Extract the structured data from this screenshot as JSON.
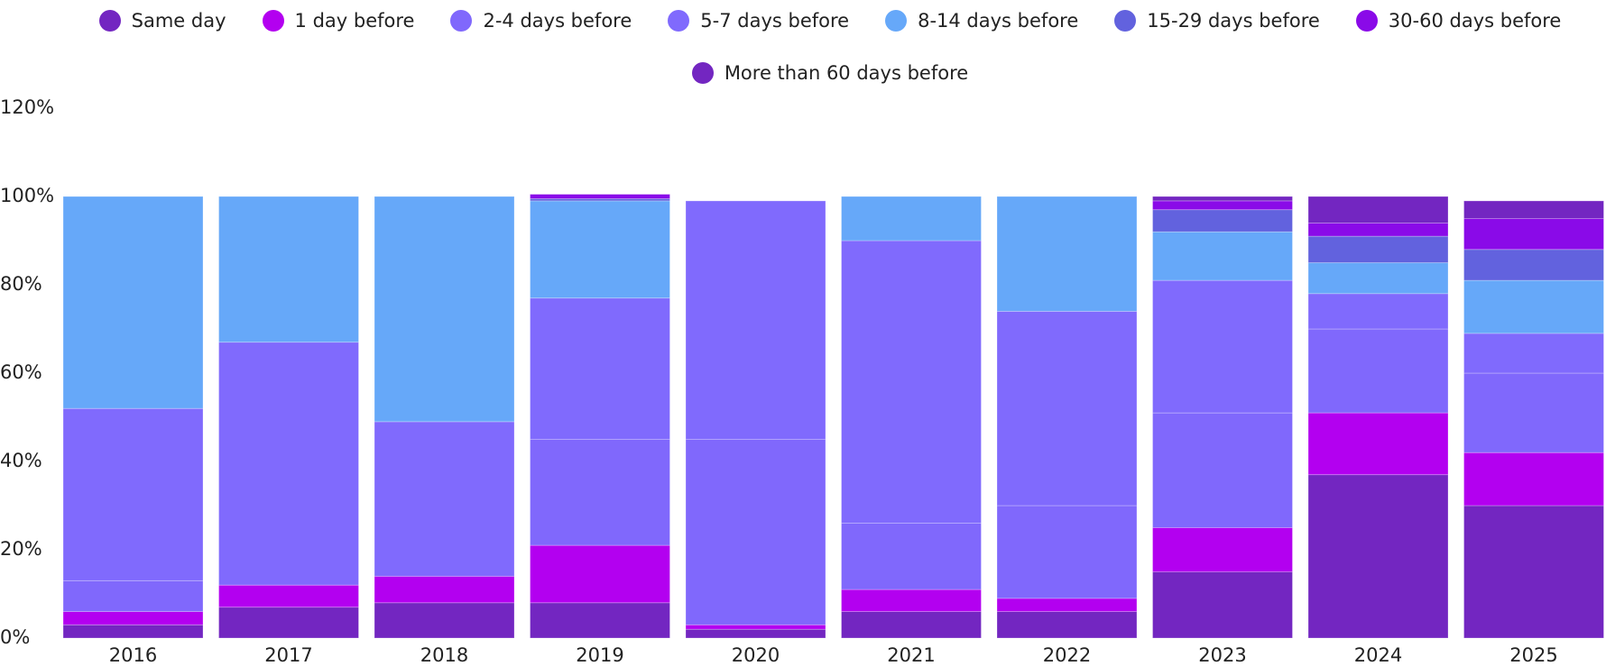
{
  "chart_data": {
    "type": "stacked_bar",
    "categories": [
      "2016",
      "2017",
      "2018",
      "2019",
      "2020",
      "2021",
      "2022",
      "2023",
      "2024",
      "2025"
    ],
    "series": [
      {
        "name": "Same day",
        "color": "#7326c1",
        "values": [
          3,
          7,
          8,
          8,
          2,
          6,
          6,
          15,
          37,
          30
        ]
      },
      {
        "name": "1 day before",
        "color": "#b300f0",
        "values": [
          3,
          5,
          6,
          13,
          1,
          5,
          3,
          10,
          14,
          12
        ]
      },
      {
        "name": "2-4 days before",
        "color": "#8068fc",
        "values": [
          7,
          0,
          0,
          24,
          42,
          15,
          21,
          26,
          19,
          18
        ]
      },
      {
        "name": "5-7 days before",
        "color": "#806afd",
        "values": [
          39,
          55,
          35,
          32,
          54,
          64,
          44,
          30,
          8,
          9
        ]
      },
      {
        "name": "8-14 days before",
        "color": "#66a8f9",
        "values": [
          48,
          33,
          51,
          22,
          0,
          10,
          26,
          11,
          7,
          12
        ]
      },
      {
        "name": "15-29 days before",
        "color": "#6262de",
        "values": [
          0,
          0,
          0,
          0.5,
          0,
          0,
          0,
          5,
          6,
          7
        ]
      },
      {
        "name": "30-60 days before",
        "color": "#8a0ae8",
        "values": [
          0,
          0,
          0,
          1,
          0,
          0,
          0,
          2,
          3,
          7
        ]
      },
      {
        "name": "More than 60 days before",
        "color": "#7326c1",
        "values": [
          0,
          0,
          0,
          0,
          0,
          0,
          0,
          1,
          6,
          4
        ]
      }
    ],
    "ylim": [
      0,
      120
    ],
    "yticks": [
      {
        "value": 0,
        "label": "0%"
      },
      {
        "value": 20,
        "label": "20%"
      },
      {
        "value": 40,
        "label": "40%"
      },
      {
        "value": 60,
        "label": "60%"
      },
      {
        "value": 80,
        "label": "80%"
      },
      {
        "value": 100,
        "label": "100%"
      },
      {
        "value": 120,
        "label": "120%"
      }
    ],
    "legend": "top"
  }
}
